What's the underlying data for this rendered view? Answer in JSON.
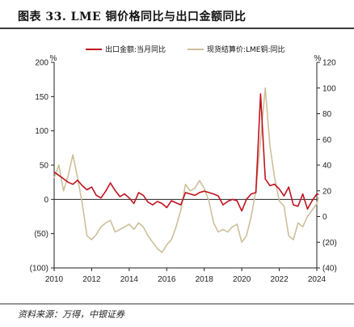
{
  "header": {
    "title": "图表 33. LME 铜价格同比与出口金额同比"
  },
  "footer": {
    "source": "资料来源：万得，中银证券"
  },
  "colors": {
    "export": "#c0121f",
    "copper": "#cdbf9a",
    "axis": "#222222"
  },
  "chart_data": {
    "type": "line",
    "title": "图表 33. LME 铜价格同比与出口金额同比",
    "x_ticks": [
      "2010",
      "2012",
      "2014",
      "2016",
      "2018",
      "2020",
      "2022",
      "2024"
    ],
    "x_range": [
      2010,
      2024
    ],
    "y_left": {
      "range": [
        -100,
        200
      ],
      "ticks": [
        "200",
        "150",
        "100",
        "50",
        "0",
        "(50)",
        "(100)"
      ],
      "unit": "%"
    },
    "y_right": {
      "range": [
        -40,
        120
      ],
      "ticks": [
        "120",
        "100",
        "80",
        "60",
        "40",
        "20",
        "0",
        "(20)",
        "(40)"
      ],
      "unit": "%"
    },
    "legend_position": "top",
    "series": [
      {
        "name": "出口金额:当月同比",
        "axis": "left",
        "color": "#c0121f",
        "points": [
          [
            2010.0,
            40
          ],
          [
            2010.25,
            35
          ],
          [
            2010.5,
            30
          ],
          [
            2010.75,
            25
          ],
          [
            2011.0,
            22
          ],
          [
            2011.25,
            28
          ],
          [
            2011.5,
            20
          ],
          [
            2011.75,
            14
          ],
          [
            2012.0,
            18
          ],
          [
            2012.25,
            6
          ],
          [
            2012.5,
            2
          ],
          [
            2012.75,
            12
          ],
          [
            2013.0,
            24
          ],
          [
            2013.25,
            13
          ],
          [
            2013.5,
            4
          ],
          [
            2013.75,
            8
          ],
          [
            2014.0,
            2
          ],
          [
            2014.25,
            -6
          ],
          [
            2014.5,
            10
          ],
          [
            2014.75,
            6
          ],
          [
            2015.0,
            -4
          ],
          [
            2015.25,
            -8
          ],
          [
            2015.5,
            -3
          ],
          [
            2015.75,
            -6
          ],
          [
            2016.0,
            -12
          ],
          [
            2016.25,
            -2
          ],
          [
            2016.5,
            -5
          ],
          [
            2016.75,
            -8
          ],
          [
            2017.0,
            10
          ],
          [
            2017.25,
            8
          ],
          [
            2017.5,
            6
          ],
          [
            2017.75,
            10
          ],
          [
            2018.0,
            12
          ],
          [
            2018.25,
            10
          ],
          [
            2018.5,
            8
          ],
          [
            2018.75,
            5
          ],
          [
            2019.0,
            -8
          ],
          [
            2019.25,
            -3
          ],
          [
            2019.5,
            0
          ],
          [
            2019.75,
            -2
          ],
          [
            2020.0,
            -17
          ],
          [
            2020.25,
            0
          ],
          [
            2020.5,
            8
          ],
          [
            2020.75,
            10
          ],
          [
            2021.0,
            154
          ],
          [
            2021.25,
            30
          ],
          [
            2021.5,
            20
          ],
          [
            2021.75,
            22
          ],
          [
            2022.0,
            15
          ],
          [
            2022.25,
            5
          ],
          [
            2022.5,
            18
          ],
          [
            2022.75,
            -8
          ],
          [
            2023.0,
            -10
          ],
          [
            2023.25,
            8
          ],
          [
            2023.5,
            -14
          ],
          [
            2023.75,
            -2
          ],
          [
            2024.0,
            8
          ],
          [
            2024.1,
            7
          ]
        ]
      },
      {
        "name": "现货结算价:LME铜:同比",
        "axis": "right",
        "color": "#cdbf9a",
        "points": [
          [
            2010.0,
            30
          ],
          [
            2010.25,
            40
          ],
          [
            2010.5,
            20
          ],
          [
            2010.75,
            32
          ],
          [
            2011.0,
            48
          ],
          [
            2011.25,
            30
          ],
          [
            2011.5,
            10
          ],
          [
            2011.75,
            -15
          ],
          [
            2012.0,
            -18
          ],
          [
            2012.25,
            -14
          ],
          [
            2012.5,
            -8
          ],
          [
            2012.75,
            -5
          ],
          [
            2013.0,
            -3
          ],
          [
            2013.25,
            -12
          ],
          [
            2013.5,
            -10
          ],
          [
            2013.75,
            -8
          ],
          [
            2014.0,
            -6
          ],
          [
            2014.25,
            -10
          ],
          [
            2014.5,
            -5
          ],
          [
            2014.75,
            -8
          ],
          [
            2015.0,
            -15
          ],
          [
            2015.25,
            -20
          ],
          [
            2015.5,
            -25
          ],
          [
            2015.75,
            -28
          ],
          [
            2016.0,
            -22
          ],
          [
            2016.25,
            -18
          ],
          [
            2016.5,
            -8
          ],
          [
            2016.75,
            5
          ],
          [
            2017.0,
            25
          ],
          [
            2017.25,
            20
          ],
          [
            2017.5,
            22
          ],
          [
            2017.75,
            28
          ],
          [
            2018.0,
            22
          ],
          [
            2018.25,
            12
          ],
          [
            2018.5,
            -5
          ],
          [
            2018.75,
            -12
          ],
          [
            2019.0,
            -10
          ],
          [
            2019.25,
            -12
          ],
          [
            2019.5,
            -8
          ],
          [
            2019.75,
            -6
          ],
          [
            2020.0,
            -20
          ],
          [
            2020.25,
            -15
          ],
          [
            2020.5,
            0
          ],
          [
            2020.75,
            20
          ],
          [
            2021.0,
            60
          ],
          [
            2021.25,
            100
          ],
          [
            2021.5,
            55
          ],
          [
            2021.75,
            30
          ],
          [
            2022.0,
            12
          ],
          [
            2022.25,
            8
          ],
          [
            2022.5,
            -15
          ],
          [
            2022.75,
            -18
          ],
          [
            2023.0,
            -5
          ],
          [
            2023.25,
            -8
          ],
          [
            2023.5,
            0
          ],
          [
            2023.75,
            5
          ],
          [
            2024.0,
            10
          ],
          [
            2024.1,
            15
          ]
        ]
      }
    ]
  }
}
